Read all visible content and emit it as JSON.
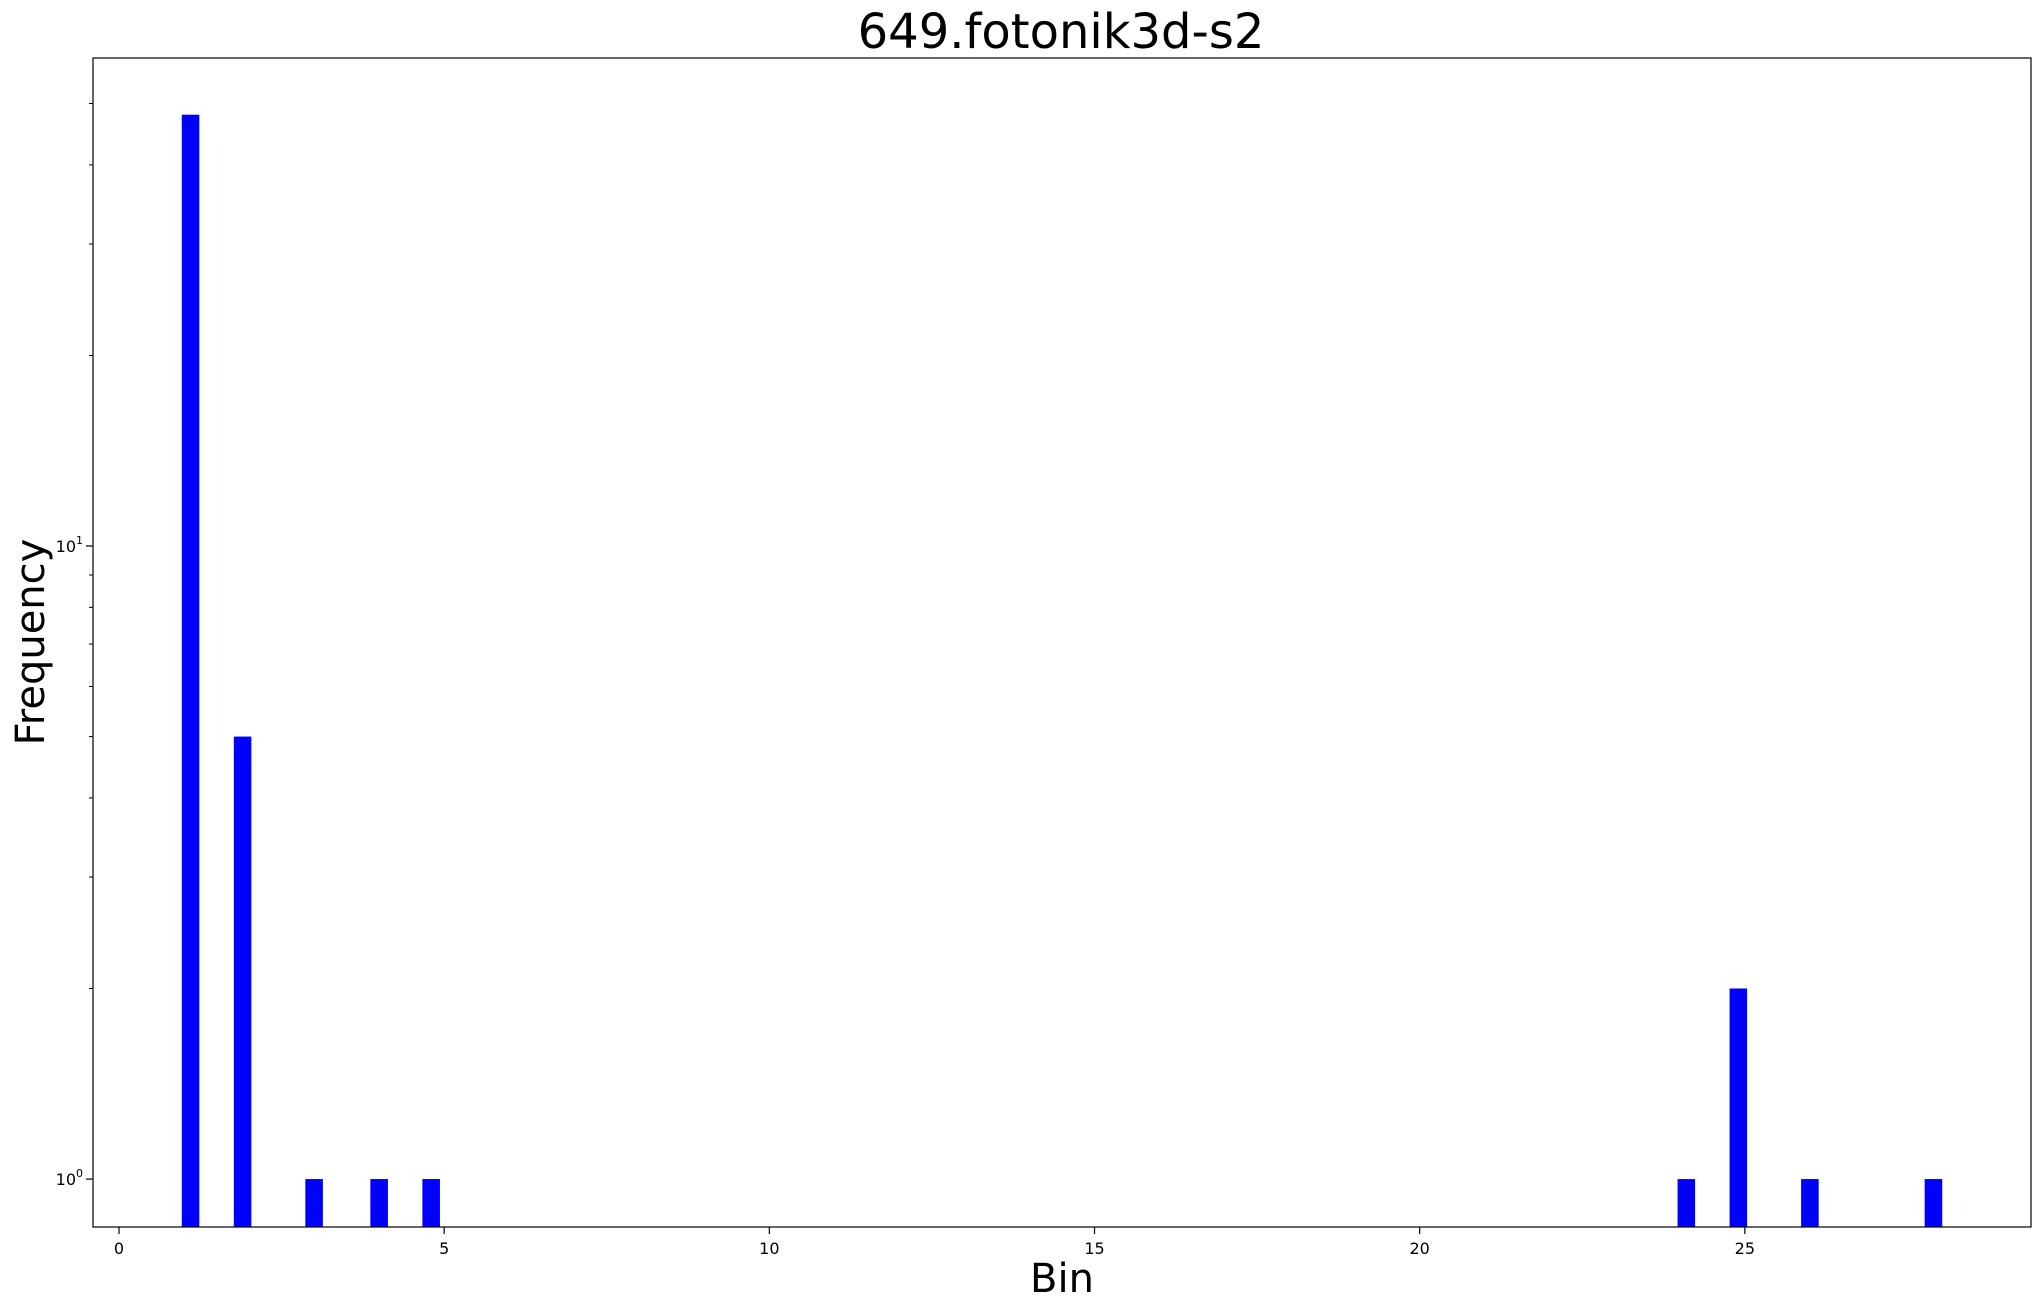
{
  "chart_data": {
    "type": "bar",
    "title": "649.fotonik3d-s2",
    "xlabel": "Bin",
    "ylabel": "Frequency",
    "yscale": "log",
    "xlim": [
      -0.4,
      29.4
    ],
    "ylim": [
      0.84,
      59
    ],
    "bar_color": "#0000ff",
    "bar_width_bins": 0.27,
    "grid": false,
    "x": [
      1.1,
      1.9,
      3.0,
      4.0,
      4.8,
      24.1,
      24.9,
      26.0,
      27.9
    ],
    "values": [
      48,
      5,
      1,
      1,
      1,
      1,
      2,
      1,
      1
    ],
    "xticks": [
      0,
      5,
      10,
      15,
      20,
      25
    ],
    "xtick_labels": [
      "0",
      "5",
      "10",
      "15",
      "20",
      "25"
    ],
    "yticks": [
      1,
      10
    ],
    "ytick_labels": [
      {
        "base": "10",
        "exp": "0"
      },
      {
        "base": "10",
        "exp": "1"
      }
    ],
    "minor_yticks": [
      2,
      3,
      4,
      5,
      6,
      7,
      8,
      9,
      20,
      30,
      40,
      50
    ]
  }
}
